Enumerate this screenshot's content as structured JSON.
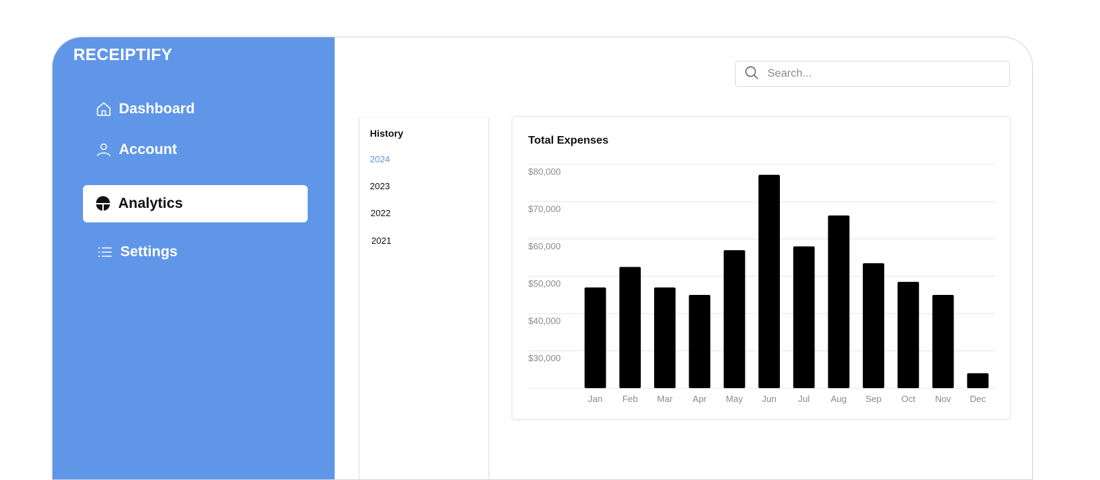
{
  "brand": "RECEIPTIFY",
  "sidebar": {
    "items": [
      {
        "label": "Dashboard",
        "icon": "home-icon",
        "active": false
      },
      {
        "label": "Account",
        "icon": "user-icon",
        "active": false
      },
      {
        "label": "Analytics",
        "icon": "analytics-icon",
        "active": true
      },
      {
        "label": "Settings",
        "icon": "list-icon",
        "active": false
      }
    ]
  },
  "search": {
    "placeholder": "Search...",
    "value": ""
  },
  "history": {
    "title": "History",
    "years": [
      "2024",
      "2023",
      "2022",
      "2021"
    ],
    "selected": "2024"
  },
  "colors": {
    "accent": "#6096e8",
    "bar": "#000000",
    "grid": "#e6e6e6"
  },
  "chart_data": {
    "type": "bar",
    "title": "Total Expenses",
    "categories": [
      "Jan",
      "Feb",
      "Mar",
      "Apr",
      "May",
      "Jun",
      "Jul",
      "Aug",
      "Sep",
      "Oct",
      "Nov",
      "Dec"
    ],
    "values": [
      47000,
      52500,
      47000,
      45000,
      57000,
      77200,
      58000,
      66300,
      53500,
      48500,
      45000,
      24000
    ],
    "yticks": [
      "$80,000",
      "$70,000",
      "$60,000",
      "$50,000",
      "$40,000",
      "$30,000"
    ],
    "ylim": [
      20000,
      80000
    ],
    "grid": true
  }
}
